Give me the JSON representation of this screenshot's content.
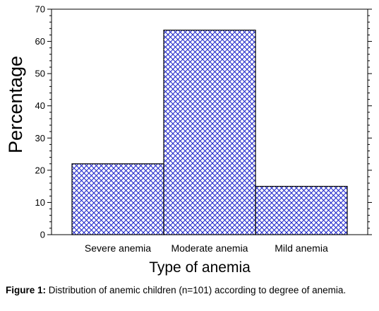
{
  "chart_data": {
    "type": "bar",
    "categories": [
      "Severe anemia",
      "Moderate anemia",
      "Mild anemia"
    ],
    "values": [
      22,
      63.5,
      15
    ],
    "ylim": [
      0,
      70
    ],
    "yticks": [
      0,
      10,
      20,
      30,
      40,
      50,
      60,
      70
    ],
    "ylabel": "Percentage",
    "xlabel": "Type of anemia",
    "grid": false,
    "bar_fill": "crosshatch",
    "colors": {
      "hatch": "#1a22c9",
      "bar_edge": "#000000"
    }
  },
  "caption": {
    "label": "Figure 1:",
    "text": " Distribution of anemic children (n=101) according to degree of anemia."
  }
}
